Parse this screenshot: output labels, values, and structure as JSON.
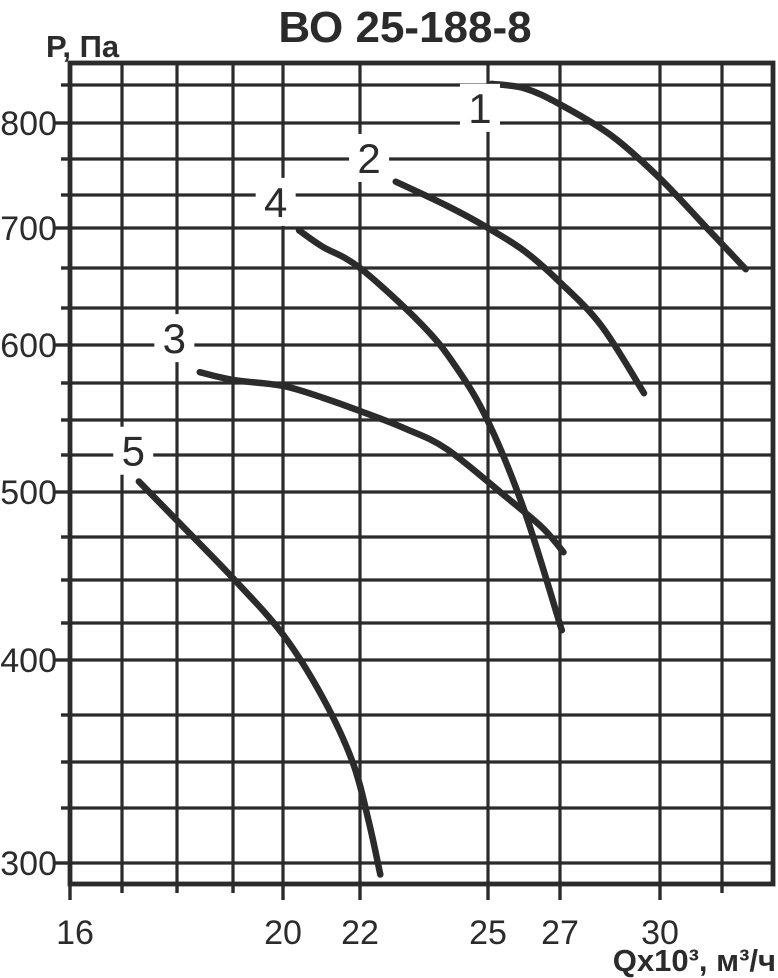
{
  "title": "ВО 25-188-8",
  "ink_color": "#2b2b2b",
  "background_color": "#ffffff",
  "chart_data": {
    "type": "line",
    "title": "ВО 25-188-8",
    "xlabel": "Qx10³, м³/ч",
    "ylabel": "Р, Па",
    "x_scale": "log",
    "y_scale": "log",
    "grid": true,
    "legend_position": "inline-labels",
    "x_range_approx": [
      16,
      33.8
    ],
    "y_range_approx": [
      292,
      865
    ],
    "x_ticks": [
      {
        "value": 16,
        "label": "16",
        "major": true
      },
      {
        "value": 17,
        "label": "",
        "major": false
      },
      {
        "value": 18,
        "label": "",
        "major": false
      },
      {
        "value": 19,
        "label": "",
        "major": false
      },
      {
        "value": 20,
        "label": "20",
        "major": true
      },
      {
        "value": 22,
        "label": "22",
        "major": true
      },
      {
        "value": 25,
        "label": "25",
        "major": true
      },
      {
        "value": 27,
        "label": "27",
        "major": true
      },
      {
        "value": 30,
        "label": "30",
        "major": true
      },
      {
        "value": 32,
        "label": "",
        "major": false
      }
    ],
    "y_ticks": [
      {
        "value": 833,
        "label": "",
        "major": false
      },
      {
        "value": 800,
        "label": "800",
        "major": true
      },
      {
        "value": 766,
        "label": "",
        "major": false
      },
      {
        "value": 733,
        "label": "",
        "major": false
      },
      {
        "value": 700,
        "label": "700",
        "major": true
      },
      {
        "value": 666,
        "label": "",
        "major": false
      },
      {
        "value": 633,
        "label": "",
        "major": false
      },
      {
        "value": 600,
        "label": "600",
        "major": true
      },
      {
        "value": 575,
        "label": "",
        "major": false
      },
      {
        "value": 550,
        "label": "",
        "major": false
      },
      {
        "value": 525,
        "label": "",
        "major": false
      },
      {
        "value": 500,
        "label": "500",
        "major": true
      },
      {
        "value": 475,
        "label": "",
        "major": false
      },
      {
        "value": 450,
        "label": "",
        "major": false
      },
      {
        "value": 425,
        "label": "",
        "major": false
      },
      {
        "value": 400,
        "label": "400",
        "major": true
      },
      {
        "value": 375,
        "label": "",
        "major": false
      },
      {
        "value": 350,
        "label": "",
        "major": false
      },
      {
        "value": 325,
        "label": "",
        "major": false
      },
      {
        "value": 300,
        "label": "300",
        "major": true
      }
    ],
    "series": [
      {
        "name": "1",
        "points": [
          [
            25.1,
            834
          ],
          [
            26,
            830
          ],
          [
            27,
            816
          ],
          [
            28.5,
            788
          ],
          [
            30,
            748
          ],
          [
            31.5,
            700
          ],
          [
            32.8,
            665
          ]
        ],
        "label_at": [
          24.8,
          813
        ]
      },
      {
        "name": "2",
        "points": [
          [
            22.8,
            745
          ],
          [
            24,
            722
          ],
          [
            25,
            700
          ],
          [
            26,
            680
          ],
          [
            27,
            654
          ],
          [
            28.2,
            617
          ],
          [
            29.5,
            568
          ]
        ],
        "label_at": [
          22.2,
          767
        ]
      },
      {
        "name": "3",
        "points": [
          [
            18.4,
            582
          ],
          [
            19,
            577
          ],
          [
            20,
            573
          ],
          [
            21,
            565
          ],
          [
            22,
            556
          ],
          [
            23,
            544
          ],
          [
            24,
            529
          ],
          [
            25.5,
            497
          ],
          [
            26.5,
            480
          ],
          [
            27.1,
            466
          ]
        ],
        "label_at": [
          17.95,
          606
        ]
      },
      {
        "name": "4",
        "points": [
          [
            20.4,
            698
          ],
          [
            21,
            684
          ],
          [
            22,
            666
          ],
          [
            23.4,
            618
          ],
          [
            24.2,
            586
          ],
          [
            25,
            549
          ],
          [
            26,
            489
          ],
          [
            27.05,
            420
          ]
        ],
        "label_at": [
          19.85,
          726
        ]
      },
      {
        "name": "5",
        "points": [
          [
            17.3,
            507
          ],
          [
            18,
            484
          ],
          [
            19,
            451
          ],
          [
            20,
            417
          ],
          [
            21,
            383
          ],
          [
            21.8,
            350
          ],
          [
            22.2,
            318
          ],
          [
            22.45,
            295
          ]
        ],
        "label_at": [
          17.2,
          528
        ]
      }
    ]
  }
}
